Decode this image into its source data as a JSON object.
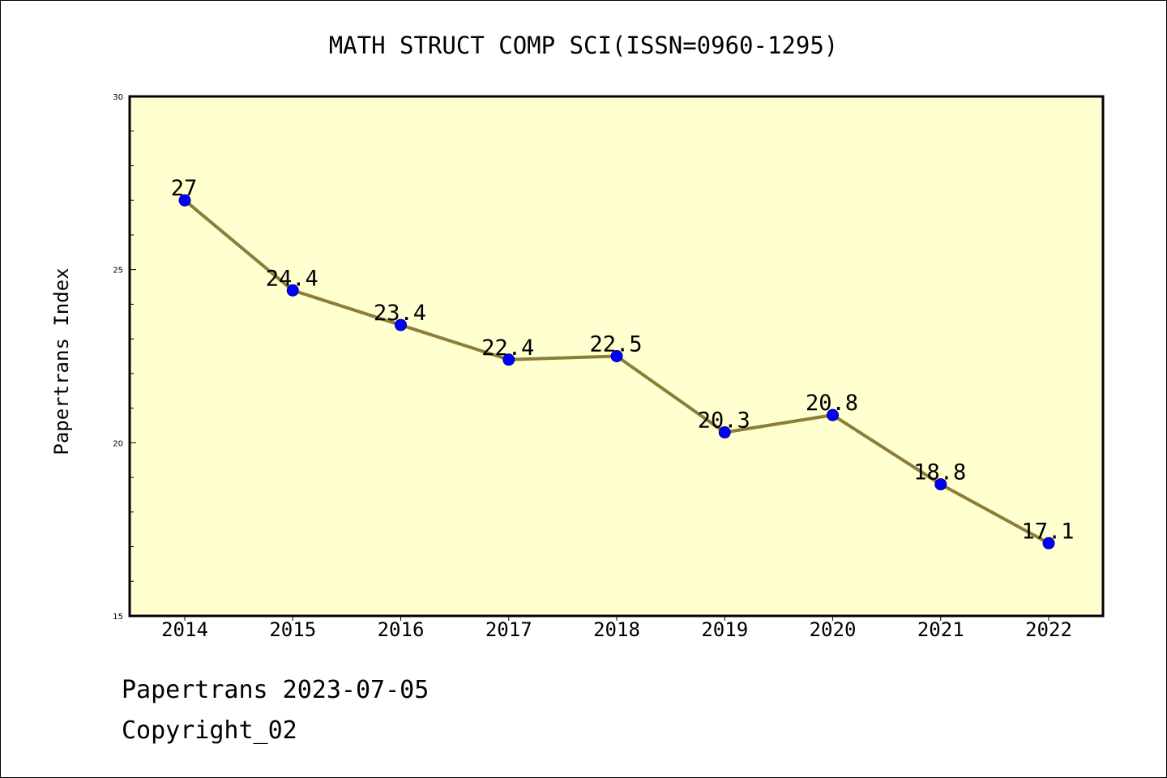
{
  "chart_data": {
    "type": "line",
    "title": "MATH STRUCT COMP SCI(ISSN=0960-1295)",
    "xlabel": "",
    "ylabel": "Papertrans Index",
    "categories": [
      "2014",
      "2015",
      "2016",
      "2017",
      "2018",
      "2019",
      "2020",
      "2021",
      "2022"
    ],
    "series": [
      {
        "values": [
          27,
          24.4,
          23.4,
          22.4,
          22.5,
          20.3,
          20.8,
          18.8,
          17.1
        ],
        "labels": [
          "27",
          "24.4",
          "23.4",
          "22.4",
          "22.5",
          "20.3",
          "20.8",
          "18.8",
          "17.1"
        ]
      }
    ],
    "ylim": [
      15,
      30
    ],
    "yticks": [
      "15",
      "20",
      "25",
      "30"
    ],
    "grid": false,
    "legend": "none",
    "colors": {
      "plot_background": "#ffffd0",
      "line": "#8b7d3a",
      "marker_fill": "#0000ff",
      "marker_edge": "#00008b",
      "axis": "#000000"
    }
  },
  "footer": {
    "line1": "Papertrans 2023-07-05",
    "line2": "Copyright_02"
  }
}
